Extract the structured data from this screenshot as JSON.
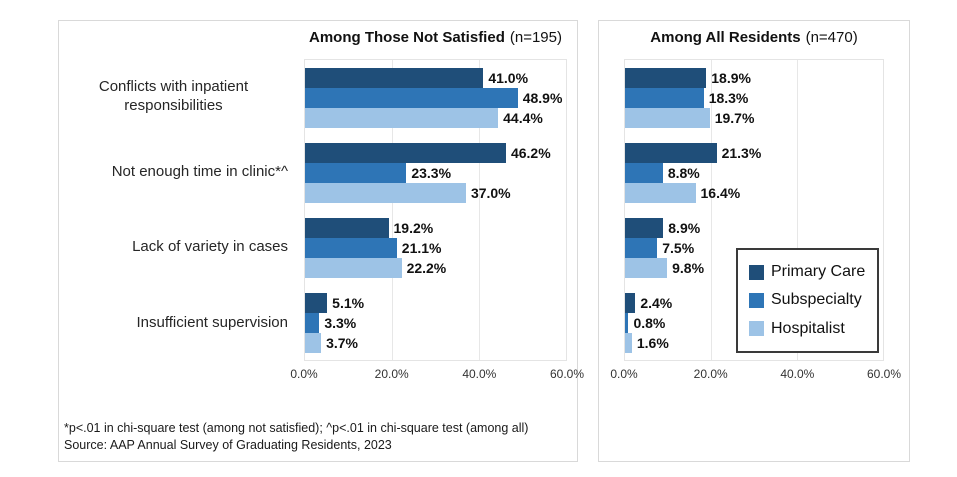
{
  "chart_data": {
    "type": "bar",
    "orientation": "horizontal",
    "categories": [
      "Conflicts with inpatient responsibilities",
      "Not enough time in clinic*^",
      "Lack of variety in cases",
      "Insufficient supervision"
    ],
    "panels": [
      {
        "title_bold": "Among Those Not Satisfied",
        "title_paren": "(n=195)",
        "series": [
          {
            "name": "Primary Care",
            "values": [
              41.0,
              46.2,
              19.2,
              5.1
            ]
          },
          {
            "name": "Subspecialty",
            "values": [
              48.9,
              23.3,
              21.1,
              3.3
            ]
          },
          {
            "name": "Hospitalist",
            "values": [
              44.4,
              37.0,
              22.2,
              3.7
            ]
          }
        ]
      },
      {
        "title_bold": "Among All Residents",
        "title_paren": "(n=470)",
        "series": [
          {
            "name": "Primary Care",
            "values": [
              18.9,
              21.3,
              8.9,
              2.4
            ]
          },
          {
            "name": "Subspecialty",
            "values": [
              18.3,
              8.8,
              7.5,
              0.8
            ]
          },
          {
            "name": "Hospitalist",
            "values": [
              19.7,
              16.4,
              9.8,
              1.6
            ]
          }
        ]
      }
    ],
    "xlim": [
      0,
      60
    ],
    "x_ticks": [
      "0.0%",
      "20.0%",
      "40.0%",
      "60.0%"
    ],
    "value_suffix": "%",
    "grid": true,
    "legend": [
      "Primary Care",
      "Subspecialty",
      "Hospitalist"
    ],
    "legend_position": "right-panel-overlay",
    "colors": [
      "#1F4E79",
      "#2E75B6",
      "#9DC3E6"
    ]
  },
  "footnote": {
    "line1": "*p<.01 in chi-square test (among not satisfied); ^p<.01 in chi-square test (among all)",
    "line2": "Source: AAP Annual Survey of Graduating Residents, 2023"
  }
}
